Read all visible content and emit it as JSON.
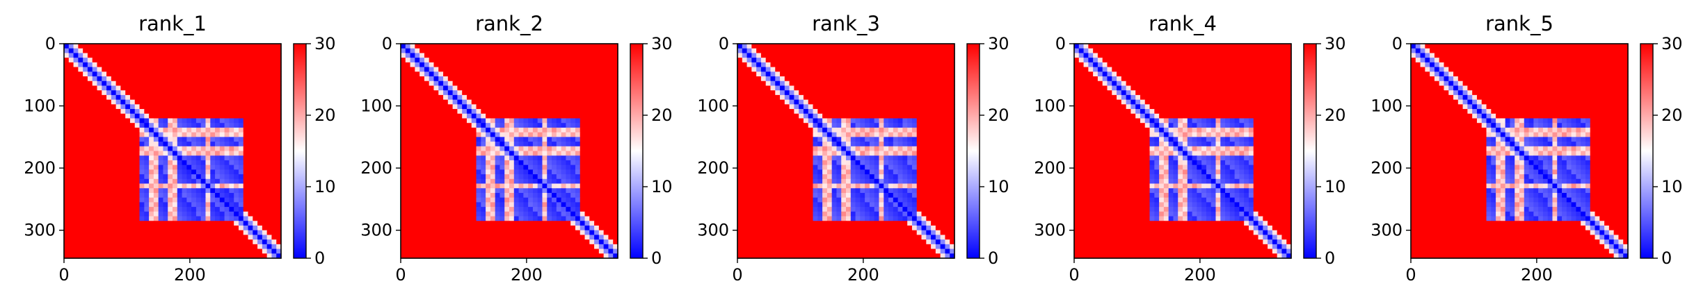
{
  "chart_data": [
    {
      "type": "heatmap",
      "title": "rank_1",
      "x_ticks": [
        0,
        200
      ],
      "y_ticks": [
        0,
        100,
        200,
        300
      ],
      "xlim": [
        0,
        345
      ],
      "ylim": [
        345,
        0
      ],
      "colorbar": {
        "range": [
          0,
          30
        ],
        "ticks": [
          0,
          10,
          20,
          30
        ]
      },
      "colormap": [
        "#0000ff",
        "#ffffff",
        "#ff0000"
      ]
    },
    {
      "type": "heatmap",
      "title": "rank_2",
      "x_ticks": [
        0,
        200
      ],
      "y_ticks": [
        0,
        100,
        200,
        300
      ],
      "xlim": [
        0,
        345
      ],
      "ylim": [
        345,
        0
      ],
      "colorbar": {
        "range": [
          0,
          30
        ],
        "ticks": [
          0,
          10,
          20,
          30
        ]
      },
      "colormap": [
        "#0000ff",
        "#ffffff",
        "#ff0000"
      ]
    },
    {
      "type": "heatmap",
      "title": "rank_3",
      "x_ticks": [
        0,
        200
      ],
      "y_ticks": [
        0,
        100,
        200,
        300
      ],
      "xlim": [
        0,
        345
      ],
      "ylim": [
        345,
        0
      ],
      "colorbar": {
        "range": [
          0,
          30
        ],
        "ticks": [
          0,
          10,
          20,
          30
        ]
      },
      "colormap": [
        "#0000ff",
        "#ffffff",
        "#ff0000"
      ]
    },
    {
      "type": "heatmap",
      "title": "rank_4",
      "x_ticks": [
        0,
        200
      ],
      "y_ticks": [
        0,
        100,
        200,
        300
      ],
      "xlim": [
        0,
        345
      ],
      "ylim": [
        345,
        0
      ],
      "colorbar": {
        "range": [
          0,
          30
        ],
        "ticks": [
          0,
          10,
          20,
          30
        ]
      },
      "colormap": [
        "#0000ff",
        "#ffffff",
        "#ff0000"
      ]
    },
    {
      "type": "heatmap",
      "title": "rank_5",
      "x_ticks": [
        0,
        200
      ],
      "y_ticks": [
        0,
        100,
        200,
        300
      ],
      "xlim": [
        0,
        345
      ],
      "ylim": [
        345,
        0
      ],
      "colorbar": {
        "range": [
          0,
          30
        ],
        "ticks": [
          0,
          10,
          20,
          30
        ]
      },
      "colormap": [
        "#0000ff",
        "#ffffff",
        "#ff0000"
      ]
    }
  ]
}
